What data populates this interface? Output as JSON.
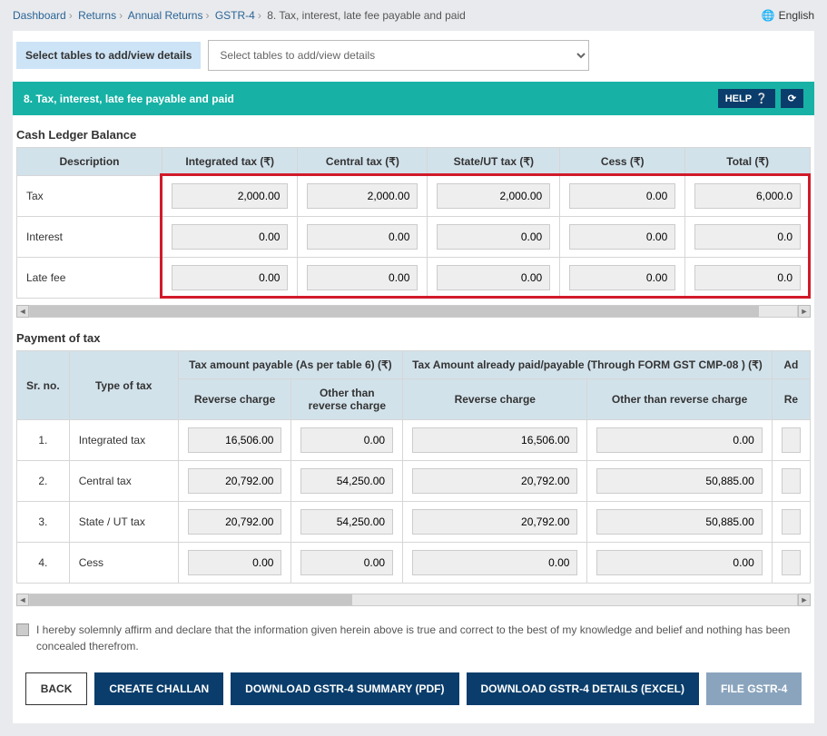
{
  "breadcrumb": {
    "items": [
      "Dashboard",
      "Returns",
      "Annual Returns",
      "GSTR-4"
    ],
    "current": "8. Tax, interest, late fee payable and paid"
  },
  "language": {
    "label": "English"
  },
  "toolbar": {
    "select_label": "Select tables to add/view details",
    "select_placeholder": "Select tables to add/view details"
  },
  "section": {
    "title": "8. Tax, interest, late fee payable and paid",
    "help_label": "HELP"
  },
  "cash_ledger": {
    "heading": "Cash Ledger Balance",
    "columns": [
      "Description",
      "Integrated tax (₹)",
      "Central tax (₹)",
      "State/UT tax (₹)",
      "Cess (₹)",
      "Total (₹)"
    ],
    "rows": [
      {
        "label": "Tax",
        "vals": [
          "2,000.00",
          "2,000.00",
          "2,000.00",
          "0.00",
          "6,000.0"
        ]
      },
      {
        "label": "Interest",
        "vals": [
          "0.00",
          "0.00",
          "0.00",
          "0.00",
          "0.0"
        ]
      },
      {
        "label": "Late fee",
        "vals": [
          "0.00",
          "0.00",
          "0.00",
          "0.00",
          "0.0"
        ]
      }
    ],
    "highlight_color": "#d11a2a",
    "scroll_thumb_pct": 95
  },
  "payment": {
    "heading": "Payment of tax",
    "header_groups": [
      {
        "label": "Sr. no.",
        "rowspan": 2
      },
      {
        "label": "Type of tax",
        "rowspan": 2
      },
      {
        "label": "Tax amount payable (As per table 6) (₹)",
        "colspan": 2
      },
      {
        "label": "Tax Amount already paid/payable (Through FORM GST CMP-08 ) (₹)",
        "colspan": 2
      },
      {
        "label": "Ad",
        "colspan": 1
      }
    ],
    "sub_headers": [
      "Reverse charge",
      "Other than reverse charge",
      "Reverse charge",
      "Other than reverse charge",
      "Re"
    ],
    "rows": [
      {
        "sr": "1.",
        "type": "Integrated tax",
        "vals": [
          "16,506.00",
          "0.00",
          "16,506.00",
          "0.00",
          ""
        ]
      },
      {
        "sr": "2.",
        "type": "Central tax",
        "vals": [
          "20,792.00",
          "54,250.00",
          "20,792.00",
          "50,885.00",
          ""
        ]
      },
      {
        "sr": "3.",
        "type": "State / UT tax",
        "vals": [
          "20,792.00",
          "54,250.00",
          "20,792.00",
          "50,885.00",
          ""
        ]
      },
      {
        "sr": "4.",
        "type": "Cess",
        "vals": [
          "0.00",
          "0.00",
          "0.00",
          "0.00",
          ""
        ]
      }
    ],
    "scroll_thumb_pct": 42
  },
  "declaration": {
    "text": "I hereby solemnly affirm and declare that the information given herein above is true and correct to the best of my knowledge and belief and nothing has been concealed therefrom."
  },
  "buttons": {
    "back": "BACK",
    "create_challan": "CREATE CHALLAN",
    "download_pdf": "DOWNLOAD GSTR-4 SUMMARY (PDF)",
    "download_excel": "DOWNLOAD GSTR-4 DETAILS (EXCEL)",
    "file": "FILE GSTR-4"
  },
  "colors": {
    "teal": "#17b2a5",
    "navy": "#0a3d6b",
    "header_bg": "#d2e2eb",
    "page_bg": "#e8eaed"
  }
}
